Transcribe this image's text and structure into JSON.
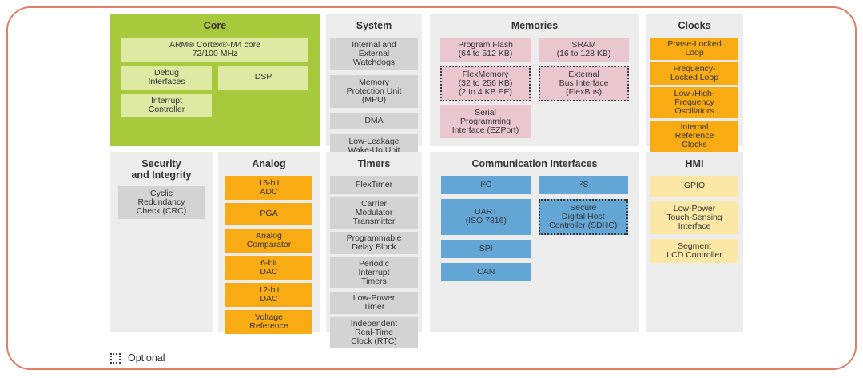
{
  "colors": {
    "frame_border": "#DC8166",
    "core_panel": "#A9C93D",
    "core_block": "#DEE9A3",
    "panel_bg": "#EDEDED",
    "gray_block": "#D3D3D3",
    "pink_block": "#EAC7CF",
    "orange_block": "#F9AB13",
    "blue_block": "#64A7D6",
    "yellow_block": "#FCE8A6",
    "text": "#333333"
  },
  "legend": {
    "label": "Optional"
  },
  "panels": [
    {
      "id": "core",
      "title": "Core",
      "theme": "core",
      "columns": 2,
      "blocks": [
        {
          "label": "ARM® Cortex®-M4 core\n72/100 MHz",
          "span": 2
        },
        {
          "label": "Debug\nInterfaces",
          "col": 1
        },
        {
          "label": "DSP",
          "col": 2
        },
        {
          "label": "Interrupt\nController",
          "col": 1
        }
      ]
    },
    {
      "id": "system",
      "title": "System",
      "theme": "gray",
      "columns": 1,
      "blocks": [
        {
          "label": "Internal and\nExternal\nWatchdogs"
        },
        {
          "label": "Memory\nProtection Unit\n(MPU)"
        },
        {
          "label": "DMA"
        },
        {
          "label": "Low-Leakage\nWake-Up Unit"
        }
      ]
    },
    {
      "id": "memories",
      "title": "Memories",
      "theme": "pink",
      "columns": 2,
      "blocks": [
        {
          "label": "Program Flash\n(64 to 512 KB)",
          "col": 1
        },
        {
          "label": "SRAM\n(16 to 128 KB)",
          "col": 2
        },
        {
          "label": "FlexMemory\n(32 to 256 KB)\n(2 to 4 KB EE)",
          "col": 1,
          "optional": true
        },
        {
          "label": "External\nBus Interface\n(FlexBus)",
          "col": 2,
          "optional": true
        },
        {
          "label": "Serial\nProgramming\nInterface (EZPort)",
          "col": 1
        }
      ]
    },
    {
      "id": "clocks",
      "title": "Clocks",
      "theme": "orange",
      "columns": 1,
      "blocks": [
        {
          "label": "Phase-Locked\nLoop"
        },
        {
          "label": "Frequency-\nLocked Loop"
        },
        {
          "label": "Low-/High-\nFrequency\nOscillators"
        },
        {
          "label": "Internal\nReference\nClocks"
        }
      ]
    },
    {
      "id": "security",
      "title": "Security\nand Integrity",
      "theme": "gray",
      "columns": 1,
      "blocks": [
        {
          "label": "Cyclic\nRedundancy\nCheck (CRC)"
        }
      ]
    },
    {
      "id": "analog",
      "title": "Analog",
      "theme": "orange",
      "columns": 1,
      "blocks": [
        {
          "label": "16-bit\nADC"
        },
        {
          "label": "PGA"
        },
        {
          "label": "Analog\nComparator"
        },
        {
          "label": "6-bit\nDAC"
        },
        {
          "label": "12-bit\nDAC"
        },
        {
          "label": "Voltage\nReference"
        }
      ]
    },
    {
      "id": "timers",
      "title": "Timers",
      "theme": "gray",
      "columns": 1,
      "blocks": [
        {
          "label": "FlexTimer"
        },
        {
          "label": "Carrier\nModulator\nTransmitter"
        },
        {
          "label": "Programmable\nDelay Block"
        },
        {
          "label": "Periodic\nInterrupt\nTimers"
        },
        {
          "label": "Low-Power\nTimer"
        },
        {
          "label": "Independent\nReal-Time\nClock (RTC)"
        }
      ]
    },
    {
      "id": "comm",
      "title": "Communication Interfaces",
      "theme": "blue",
      "columns": 2,
      "blocks": [
        {
          "label": "I²C",
          "col": 1
        },
        {
          "label": "I²S",
          "col": 2
        },
        {
          "label": "UART\n(ISO 7816)",
          "col": 1
        },
        {
          "label": "Secure\nDigital Host\nController (SDHC)",
          "col": 2,
          "optional": true
        },
        {
          "label": "SPI",
          "col": 1
        },
        {
          "label": "CAN",
          "col": 1
        }
      ]
    },
    {
      "id": "hmi",
      "title": "HMI",
      "theme": "yellow",
      "columns": 1,
      "blocks": [
        {
          "label": "GPIO"
        },
        {
          "label": "Low-Power\nTouch-Sensing\nInterface"
        },
        {
          "label": "Segment\nLCD Controller"
        }
      ]
    }
  ]
}
